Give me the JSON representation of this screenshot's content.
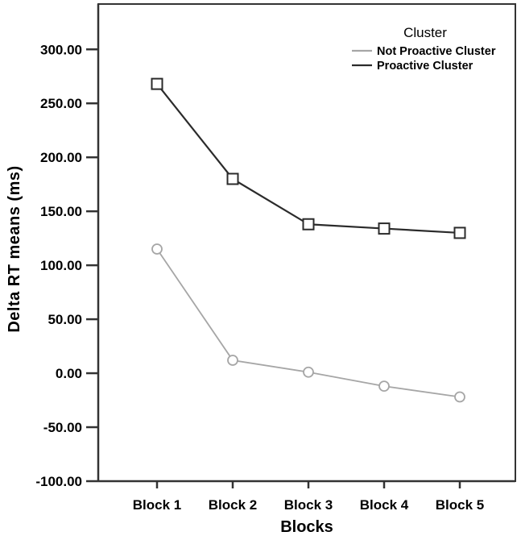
{
  "chart_data": {
    "type": "line",
    "title": "",
    "xlabel": "Blocks",
    "ylabel": "Delta RT means (ms)",
    "categories": [
      "Block 1",
      "Block 2",
      "Block 3",
      "Block 4",
      "Block 5"
    ],
    "series": [
      {
        "name": "Not Proactive Cluster",
        "values": [
          115,
          12,
          1,
          -12,
          -22
        ],
        "color": "#a6a6a6",
        "marker": "circle",
        "line_width": 1.8
      },
      {
        "name": "Proactive Cluster",
        "values": [
          268,
          180,
          138,
          134,
          130
        ],
        "color": "#2b2b2b",
        "marker": "square",
        "line_width": 2.2
      }
    ],
    "ylim": [
      -100,
      342
    ],
    "yticks": [
      300,
      250,
      200,
      150,
      100,
      50,
      0,
      -50,
      -100
    ],
    "ytick_labels": [
      "300.00",
      "250.00",
      "200.00",
      "150.00",
      "100.00",
      "50.00",
      "0.00",
      "-50.00",
      "-100.00"
    ],
    "grid": false,
    "legend": {
      "title": "Cluster",
      "position": "top-right",
      "entries": [
        "Not Proactive Cluster",
        "Proactive Cluster"
      ]
    }
  },
  "colors": {
    "background": "#ffffff",
    "frame": "#333333",
    "text": "#000000"
  }
}
